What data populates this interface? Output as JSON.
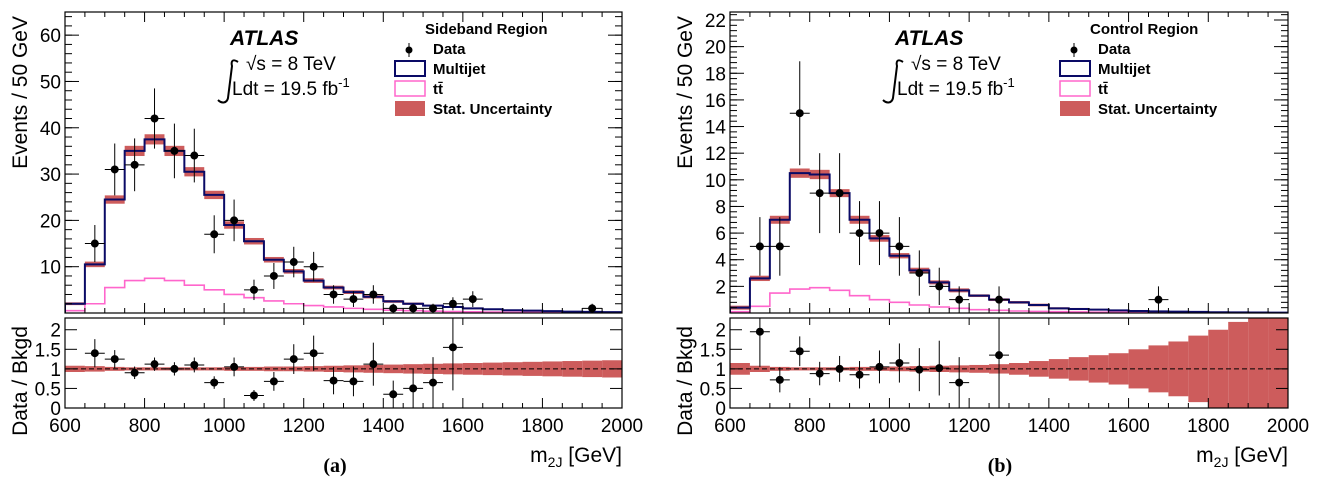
{
  "chart_data": [
    {
      "type": "histogram",
      "panel_label": "(a)",
      "experiment": "ATLAS",
      "energy": "√s = 8 TeV",
      "luminosity": "Ldt = 19.5 fb",
      "luminosity_exp": "-1",
      "region_title": "Sideband Region",
      "legend": [
        "Data",
        "Multijet",
        "tt̄",
        "Stat. Uncertainty"
      ],
      "xlabel": "m",
      "xlabel_sub": "2J",
      "xlabel_unit": " [GeV]",
      "ylabel": "Events / 50 GeV",
      "ratio_ylabel": "Data / Bkgd",
      "xlim": [
        600,
        2000
      ],
      "ylim": [
        0,
        65
      ],
      "yticks": [
        10,
        20,
        30,
        40,
        50,
        60
      ],
      "xticks": [
        600,
        800,
        1000,
        1200,
        1400,
        1600,
        1800,
        2000
      ],
      "ratio_ylim": [
        0,
        2.3
      ],
      "ratio_yticks": [
        0,
        0.5,
        1,
        1.5,
        2
      ],
      "ratio_ytick_labels": [
        "0",
        "0.5",
        "1",
        "1.5",
        "2"
      ],
      "bin_edges": [
        600,
        650,
        700,
        750,
        800,
        850,
        900,
        950,
        1000,
        1050,
        1100,
        1150,
        1200,
        1250,
        1300,
        1350,
        1400,
        1450,
        1500,
        1550,
        1600,
        1650,
        1700,
        1750,
        1800,
        1850,
        1900,
        1950,
        2000
      ],
      "multijet": [
        2,
        10.5,
        24.5,
        35,
        37.5,
        35,
        30.5,
        25.5,
        19,
        15.5,
        11.5,
        9,
        7,
        5.5,
        4.5,
        3.5,
        2.5,
        2,
        1.6,
        1.3,
        1,
        0.8,
        0.6,
        0.5,
        0.4,
        0.3,
        0.25,
        0.2
      ],
      "multijet_err": [
        0.3,
        0.6,
        0.9,
        1.1,
        1.1,
        1.1,
        1,
        0.9,
        0.8,
        0.7,
        0.6,
        0.5,
        0.5,
        0.4,
        0.4,
        0.35,
        0.3,
        0.25,
        0.2,
        0.2,
        0.2,
        0.15,
        0.15,
        0.1,
        0.1,
        0.1,
        0.1,
        0.1
      ],
      "ttbar": [
        0.5,
        2,
        5.5,
        7,
        7.5,
        7,
        6,
        5,
        4,
        3.3,
        2.6,
        2,
        1.6,
        1.3,
        1,
        0.8,
        0.6,
        0.5,
        0.4,
        0.3,
        0.25,
        0.2,
        0.15,
        0.12,
        0.1,
        0.08,
        0.06,
        0.05
      ],
      "data": [
        {
          "x": 675,
          "y": 15,
          "yerr": 4
        },
        {
          "x": 725,
          "y": 31,
          "yerr": 5.6
        },
        {
          "x": 775,
          "y": 32,
          "yerr": 5.7
        },
        {
          "x": 825,
          "y": 42,
          "yerr": 6.5
        },
        {
          "x": 875,
          "y": 35,
          "yerr": 5.9
        },
        {
          "x": 925,
          "y": 34,
          "yerr": 5.8
        },
        {
          "x": 975,
          "y": 17,
          "yerr": 4.1
        },
        {
          "x": 1025,
          "y": 20,
          "yerr": 4.5
        },
        {
          "x": 1075,
          "y": 5,
          "yerr": 2.2
        },
        {
          "x": 1125,
          "y": 8,
          "yerr": 2.8
        },
        {
          "x": 1175,
          "y": 11,
          "yerr": 3.3
        },
        {
          "x": 1225,
          "y": 10,
          "yerr": 3.2
        },
        {
          "x": 1275,
          "y": 4,
          "yerr": 2
        },
        {
          "x": 1325,
          "y": 3,
          "yerr": 1.7
        },
        {
          "x": 1375,
          "y": 4,
          "yerr": 2
        },
        {
          "x": 1425,
          "y": 1,
          "yerr": 1
        },
        {
          "x": 1475,
          "y": 1,
          "yerr": 1
        },
        {
          "x": 1525,
          "y": 1,
          "yerr": 1
        },
        {
          "x": 1575,
          "y": 2,
          "yerr": 1.4
        },
        {
          "x": 1625,
          "y": 3,
          "yerr": 1.7
        },
        {
          "x": 1925,
          "y": 1,
          "yerr": 1
        }
      ],
      "ratio": [
        {
          "x": 675,
          "y": 1.4,
          "yerr": 0.36
        },
        {
          "x": 725,
          "y": 1.25,
          "yerr": 0.23
        },
        {
          "x": 775,
          "y": 0.9,
          "yerr": 0.16
        },
        {
          "x": 825,
          "y": 1.12,
          "yerr": 0.17
        },
        {
          "x": 875,
          "y": 1,
          "yerr": 0.17
        },
        {
          "x": 925,
          "y": 1.1,
          "yerr": 0.19
        },
        {
          "x": 975,
          "y": 0.65,
          "yerr": 0.16
        },
        {
          "x": 1025,
          "y": 1.05,
          "yerr": 0.24
        },
        {
          "x": 1075,
          "y": 0.32,
          "yerr": 0.14
        },
        {
          "x": 1125,
          "y": 0.68,
          "yerr": 0.24
        },
        {
          "x": 1175,
          "y": 1.25,
          "yerr": 0.38
        },
        {
          "x": 1225,
          "y": 1.4,
          "yerr": 0.45
        },
        {
          "x": 1275,
          "y": 0.7,
          "yerr": 0.35
        },
        {
          "x": 1325,
          "y": 0.68,
          "yerr": 0.38
        },
        {
          "x": 1375,
          "y": 1.12,
          "yerr": 0.55
        },
        {
          "x": 1425,
          "y": 0.35,
          "yerr": 0.35
        },
        {
          "x": 1475,
          "y": 0.5,
          "yerr": 0.5
        },
        {
          "x": 1525,
          "y": 0.65,
          "yerr": 0.65
        },
        {
          "x": 1575,
          "y": 1.55,
          "yerr": 1.1
        }
      ],
      "ratio_band_halfwidth": [
        0.08,
        0.07,
        0.05,
        0.04,
        0.04,
        0.04,
        0.04,
        0.04,
        0.05,
        0.05,
        0.06,
        0.06,
        0.07,
        0.08,
        0.09,
        0.1,
        0.11,
        0.12,
        0.13,
        0.14,
        0.15,
        0.16,
        0.17,
        0.18,
        0.19,
        0.2,
        0.21,
        0.22
      ]
    },
    {
      "type": "histogram",
      "panel_label": "(b)",
      "experiment": "ATLAS",
      "energy": "√s = 8 TeV",
      "luminosity": "Ldt = 19.5 fb",
      "luminosity_exp": "-1",
      "region_title": "Control Region",
      "legend": [
        "Data",
        "Multijet",
        "tt̄",
        "Stat. Uncertainty"
      ],
      "xlabel": "m",
      "xlabel_sub": "2J",
      "xlabel_unit": " [GeV]",
      "ylabel": "Events / 50 GeV",
      "ratio_ylabel": "Data / Bkgd",
      "xlim": [
        600,
        2000
      ],
      "ylim": [
        0,
        22.6
      ],
      "yticks": [
        2,
        4,
        6,
        8,
        10,
        12,
        14,
        16,
        18,
        20,
        22
      ],
      "xticks": [
        600,
        800,
        1000,
        1200,
        1400,
        1600,
        1800,
        2000
      ],
      "ratio_ylim": [
        0,
        2.3
      ],
      "ratio_yticks": [
        0,
        0.5,
        1,
        1.5,
        2
      ],
      "ratio_ytick_labels": [
        "0",
        "0.5",
        "1",
        "1.5",
        "2"
      ],
      "bin_edges": [
        600,
        650,
        700,
        750,
        800,
        850,
        900,
        950,
        1000,
        1050,
        1100,
        1150,
        1200,
        1250,
        1300,
        1350,
        1400,
        1450,
        1500,
        1550,
        1600,
        1650,
        1700,
        1750,
        1800,
        1850,
        1900,
        1950,
        2000
      ],
      "multijet": [
        0.4,
        2.6,
        7,
        10.5,
        10.4,
        9,
        7,
        5.6,
        4.3,
        3.2,
        2.3,
        1.7,
        1.3,
        1,
        0.8,
        0.6,
        0.35,
        0.3,
        0.25,
        0.2,
        0.15,
        0.12,
        0.1,
        0.08,
        0.06,
        0.05,
        0.04,
        0.03
      ],
      "multijet_err": [
        0.15,
        0.2,
        0.3,
        0.35,
        0.35,
        0.3,
        0.3,
        0.25,
        0.2,
        0.2,
        0.15,
        0.15,
        0.1,
        0.1,
        0.1,
        0.1,
        0.08,
        0.08,
        0.06,
        0.05,
        0.04,
        0.04,
        0.04,
        0.04,
        0.03,
        0.03,
        0.03,
        0.03
      ],
      "ttbar": [
        0.1,
        0.5,
        1.5,
        1.8,
        1.9,
        1.7,
        1.3,
        1,
        0.8,
        0.6,
        0.45,
        0.35,
        0.25,
        0.2,
        0.15,
        0.12,
        0.1,
        0.08,
        0.06,
        0.05,
        0.04,
        0.03,
        0.03,
        0.02,
        0.02,
        0.02,
        0.01,
        0.01
      ],
      "data": [
        {
          "x": 675,
          "y": 5,
          "yerr": 2.2
        },
        {
          "x": 725,
          "y": 5,
          "yerr": 2.2
        },
        {
          "x": 775,
          "y": 15,
          "yerr": 3.9
        },
        {
          "x": 825,
          "y": 9,
          "yerr": 3
        },
        {
          "x": 875,
          "y": 9,
          "yerr": 3
        },
        {
          "x": 925,
          "y": 6,
          "yerr": 2.4
        },
        {
          "x": 975,
          "y": 6,
          "yerr": 2.4
        },
        {
          "x": 1025,
          "y": 5,
          "yerr": 2.2
        },
        {
          "x": 1075,
          "y": 3,
          "yerr": 1.7
        },
        {
          "x": 1125,
          "y": 2,
          "yerr": 1.4
        },
        {
          "x": 1175,
          "y": 1,
          "yerr": 1
        },
        {
          "x": 1275,
          "y": 1,
          "yerr": 1
        },
        {
          "x": 1675,
          "y": 1,
          "yerr": 1
        }
      ],
      "ratio": [
        {
          "x": 675,
          "y": 1.95,
          "yerr": 0.9
        },
        {
          "x": 725,
          "y": 0.72,
          "yerr": 0.32
        },
        {
          "x": 775,
          "y": 1.45,
          "yerr": 0.38
        },
        {
          "x": 825,
          "y": 0.88,
          "yerr": 0.3
        },
        {
          "x": 875,
          "y": 1,
          "yerr": 0.33
        },
        {
          "x": 925,
          "y": 0.85,
          "yerr": 0.35
        },
        {
          "x": 975,
          "y": 1.05,
          "yerr": 0.42
        },
        {
          "x": 1025,
          "y": 1.15,
          "yerr": 0.5
        },
        {
          "x": 1075,
          "y": 0.98,
          "yerr": 0.55
        },
        {
          "x": 1125,
          "y": 1.02,
          "yerr": 0.7
        },
        {
          "x": 1175,
          "y": 0.65,
          "yerr": 0.65
        },
        {
          "x": 1275,
          "y": 1.35,
          "yerr": 1.35
        }
      ],
      "ratio_band_halfwidth": [
        0.15,
        0.08,
        0.05,
        0.04,
        0.04,
        0.04,
        0.05,
        0.05,
        0.06,
        0.07,
        0.08,
        0.09,
        0.1,
        0.12,
        0.15,
        0.2,
        0.25,
        0.3,
        0.35,
        0.4,
        0.5,
        0.6,
        0.7,
        0.85,
        1,
        1.2,
        1.3,
        1.3
      ]
    }
  ],
  "colors": {
    "data": "#000000",
    "multijet": "#0a0a66",
    "ttbar": "#ff66cc",
    "stat_uncertainty": "#cd5c5c"
  }
}
